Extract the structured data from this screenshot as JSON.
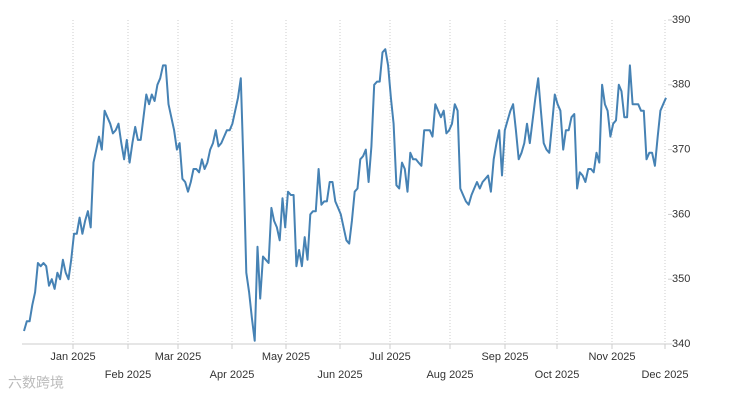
{
  "chart_data": {
    "type": "line",
    "watermark": "六数跨境",
    "xticks": [
      "Jan 2025",
      "Feb 2025",
      "Mar 2025",
      "Apr 2025",
      "May 2025",
      "Jun 2025",
      "Jul 2025",
      "Aug 2025",
      "Sep 2025",
      "Oct 2025",
      "Nov 2025",
      "Dec 2025"
    ],
    "ylim": [
      340,
      390
    ],
    "yticks": [
      340,
      350,
      360,
      370,
      380,
      390
    ],
    "grid": true,
    "series": [
      {
        "color": "#4682b4",
        "values": [
          342,
          343.5,
          343.5,
          346,
          348,
          352.5,
          352,
          352.5,
          352,
          349,
          350,
          348.5,
          351,
          350,
          353,
          351,
          350,
          353,
          357,
          357,
          359.5,
          357,
          359,
          360.5,
          358,
          368,
          370,
          372,
          370,
          376,
          375,
          374,
          372.5,
          373,
          374,
          371,
          368.5,
          371.5,
          368,
          371,
          373.5,
          371.5,
          371.5,
          375,
          378.5,
          377,
          378.5,
          377.5,
          380,
          381,
          383,
          383,
          377,
          375,
          373,
          370,
          371,
          365.5,
          365,
          363.5,
          365,
          367,
          367,
          366.5,
          368.5,
          367,
          368,
          370,
          371,
          373,
          370.5,
          371,
          372,
          373,
          373,
          374,
          376,
          378,
          381,
          367,
          351,
          348,
          344,
          340.5,
          355,
          347,
          353.5,
          353,
          352.5,
          361,
          359,
          358,
          356,
          362.5,
          358,
          363.5,
          363,
          363,
          352,
          354.5,
          352,
          356.5,
          353,
          360,
          360.5,
          360.5,
          367,
          361.5,
          362,
          362,
          365,
          365,
          362,
          361,
          360,
          358,
          356,
          355.5,
          359,
          363.5,
          364,
          368.5,
          369,
          370,
          365,
          370.5,
          380,
          380.5,
          380.5,
          385,
          385.5,
          383,
          378,
          374,
          364.5,
          364,
          368,
          367,
          363.5,
          369.5,
          368.5,
          368.5,
          368,
          367.5,
          373,
          373,
          373,
          372,
          377,
          376,
          375,
          376,
          372.5,
          373,
          374,
          377,
          376,
          364,
          363,
          362,
          361.5,
          363,
          364,
          365,
          364,
          365,
          365.5,
          366,
          363.5,
          368.5,
          371,
          373,
          366,
          373,
          374.5,
          376,
          377,
          373,
          368.5,
          369.5,
          371,
          374,
          371,
          374.5,
          378,
          381,
          376,
          371,
          370,
          369.5,
          374,
          378.5,
          377,
          376,
          370,
          373,
          373,
          375,
          375.5,
          364,
          366.5,
          366,
          365,
          367,
          367,
          366.5,
          369.5,
          368,
          380,
          377,
          376,
          372,
          374,
          374.5,
          380,
          379,
          375,
          375,
          383,
          377,
          377,
          377,
          376,
          376,
          368.5,
          369.5,
          369.5,
          367.5,
          372,
          376,
          377,
          378
        ]
      }
    ]
  }
}
